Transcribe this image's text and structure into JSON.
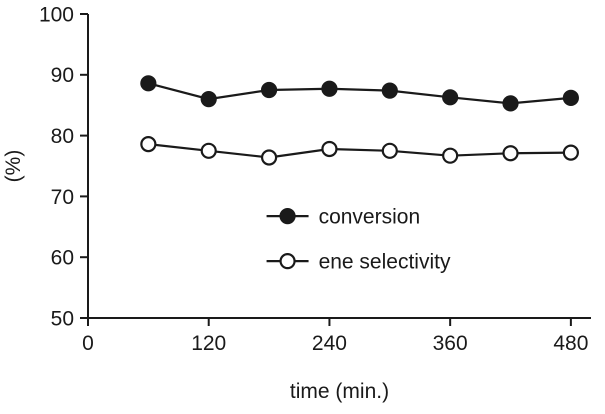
{
  "chart_data": {
    "type": "line",
    "title": "",
    "xlabel": "time (min.)",
    "ylabel": "(%)",
    "xlim": [
      0,
      500
    ],
    "ylim": [
      50,
      100
    ],
    "xticks": [
      0,
      120,
      240,
      360,
      480
    ],
    "yticks": [
      50,
      60,
      70,
      80,
      90,
      100
    ],
    "grid": false,
    "legend_position": "inside-center-bottom",
    "x": [
      60,
      120,
      180,
      240,
      300,
      360,
      420,
      480
    ],
    "series": [
      {
        "name": "conversion",
        "marker": "filled-circle",
        "values": [
          88.6,
          86.0,
          87.5,
          87.7,
          87.4,
          86.3,
          85.3,
          86.2
        ]
      },
      {
        "name": "ene selectivity",
        "marker": "open-circle",
        "values": [
          78.6,
          77.5,
          76.4,
          77.8,
          77.5,
          76.7,
          77.1,
          77.2
        ]
      }
    ],
    "colors": {
      "ink": "#1a1a1a",
      "background": "#ffffff",
      "open_marker_fill": "#ffffff"
    }
  }
}
